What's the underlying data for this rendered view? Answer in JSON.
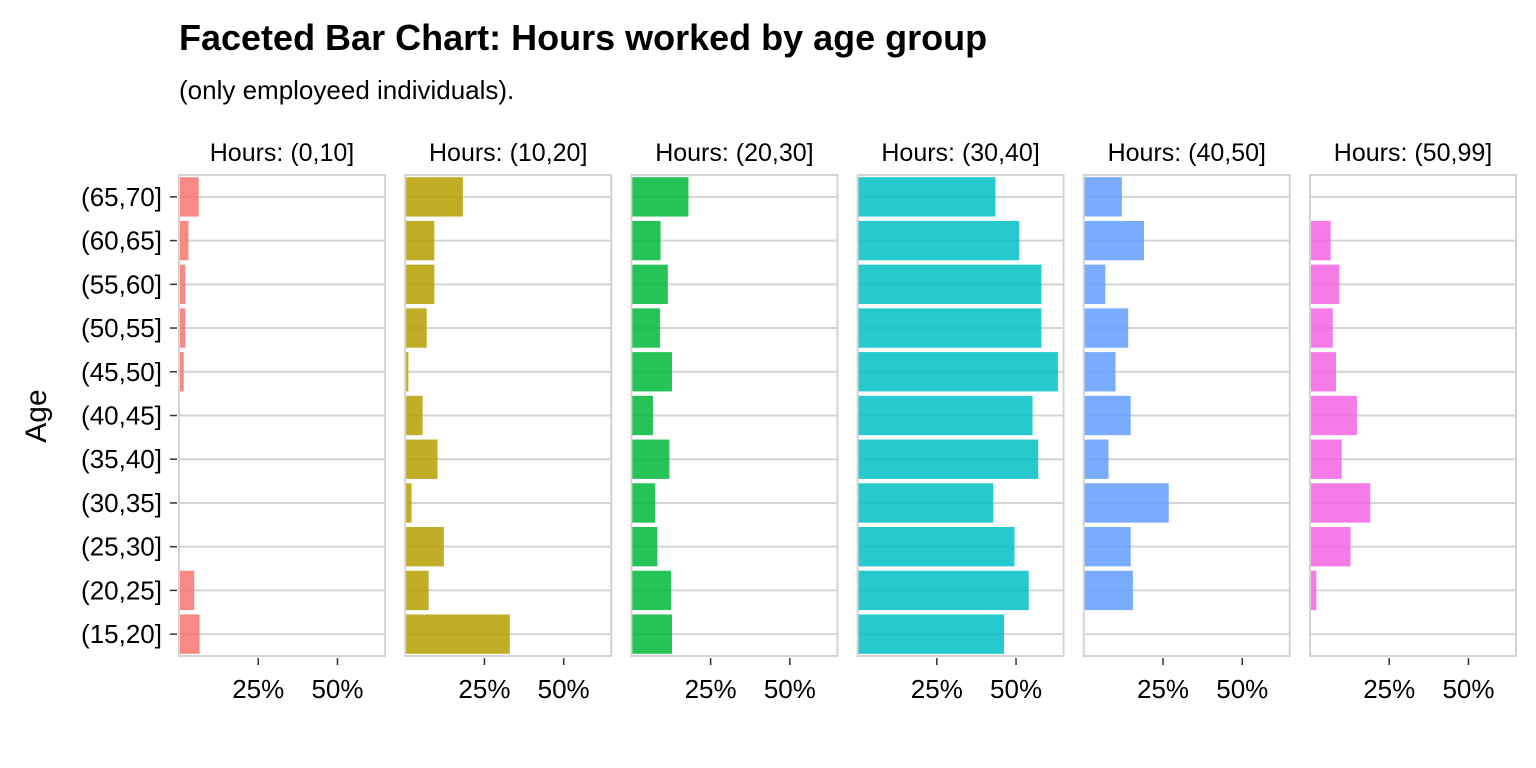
{
  "chart_data": {
    "type": "bar",
    "orientation": "horizontal",
    "title": "Faceted Bar Chart: Hours worked by age group",
    "subtitle": "(only employeed individuals).",
    "ylabel": "Age",
    "xlabel": "",
    "xlim": [
      0,
      0.65
    ],
    "xticks": [
      0.25,
      0.5
    ],
    "xtick_labels": [
      "25%",
      "50%"
    ],
    "grid": "horizontal",
    "categories": [
      "(15,20]",
      "(20,25]",
      "(25,30]",
      "(30,35]",
      "(35,40]",
      "(40,45]",
      "(45,50]",
      "(50,55]",
      "(55,60]",
      "(60,65]",
      "(65,70]"
    ],
    "facets": [
      {
        "label": "Hours: (0,10]",
        "color": "#F8766D",
        "values": [
          0.065,
          0.048,
          0,
          0,
          0,
          0,
          0.015,
          0.02,
          0.02,
          0.03,
          0.062
        ]
      },
      {
        "label": "Hours: (10,20]",
        "color": "#B79F00",
        "values": [
          0.33,
          0.074,
          0.122,
          0.02,
          0.102,
          0.055,
          0.01,
          0.068,
          0.092,
          0.092,
          0.182
        ]
      },
      {
        "label": "Hours: (20,30]",
        "color": "#00BA38",
        "values": [
          0.128,
          0.125,
          0.082,
          0.075,
          0.12,
          0.068,
          0.128,
          0.09,
          0.115,
          0.092,
          0.18
        ]
      },
      {
        "label": "Hours: (30,40]",
        "color": "#00BFC4",
        "values": [
          0.462,
          0.54,
          0.495,
          0.428,
          0.57,
          0.552,
          0.632,
          0.58,
          0.58,
          0.51,
          0.435
        ]
      },
      {
        "label": "Hours: (40,50]",
        "color": "#619CFF",
        "values": [
          0,
          0.155,
          0.148,
          0.268,
          0.078,
          0.148,
          0.1,
          0.14,
          0.068,
          0.19,
          0.12
        ]
      },
      {
        "label": "Hours: (50,99]",
        "color": "#F564E3",
        "values": [
          0,
          0.02,
          0.128,
          0.19,
          0.1,
          0.148,
          0.082,
          0.072,
          0.092,
          0.065,
          0
        ]
      }
    ]
  }
}
